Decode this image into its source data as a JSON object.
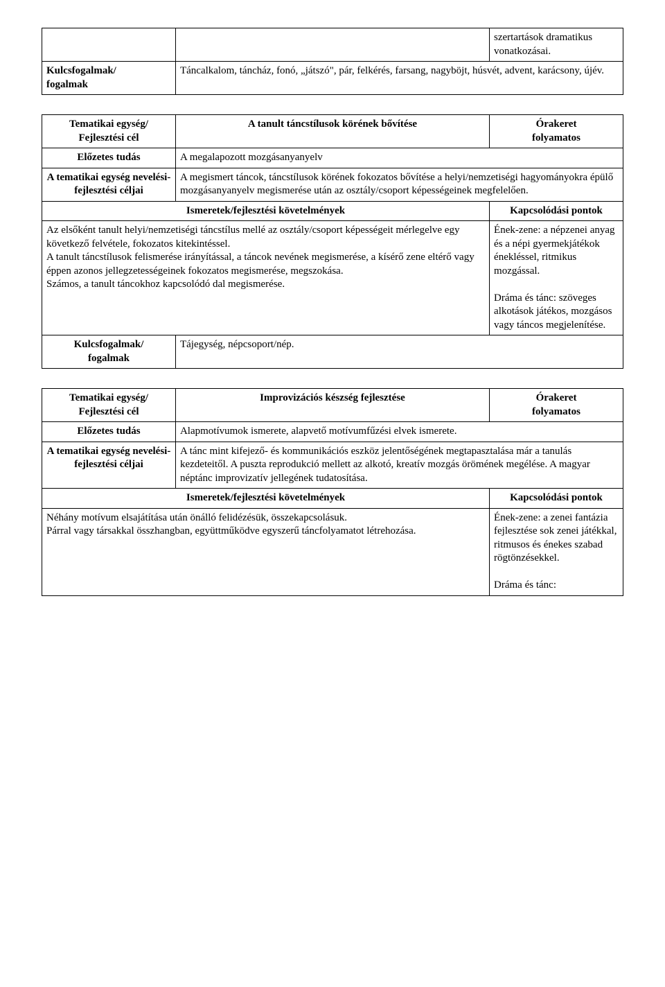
{
  "table1": {
    "row1": {
      "c1": "",
      "c2": "",
      "c3": "szertartások dramatikus vonatkozásai."
    },
    "row2": {
      "c1": "Kulcsfogalmak/\nfogalmak",
      "c2": "Táncalkalom, táncház, fonó, „játszó\", pár, felkérés, farsang, nagyböjt, húsvét, advent, karácsony, újév."
    }
  },
  "table2": {
    "r1": {
      "c1": "Tematikai egység/\nFejlesztési cél",
      "c2": "A tanult táncstílusok körének bővítése",
      "c3": "Órakeret\nfolyamatos"
    },
    "r2": {
      "c1": "Előzetes tudás",
      "c2": "A megalapozott mozgásanyanyelv"
    },
    "r3": {
      "c1": "A tematikai egység nevelési-fejlesztési céljai",
      "c2": "A megismert táncok, táncstílusok körének fokozatos bővítése a helyi/nemzetiségi hagyományokra épülő mozgásanyanyelv megismerése után az osztály/csoport képességeinek megfelelően."
    },
    "r4": {
      "c1": "Ismeretek/fejlesztési követelmények",
      "c2": "Kapcsolódási pontok"
    },
    "r5": {
      "c1": "Az elsőként tanult helyi/nemzetiségi táncstílus mellé az osztály/csoport képességeit mérlegelve egy következő felvétele, fokozatos kitekintéssel.\nA tanult táncstílusok felismerése irányítással, a táncok nevének megismerése, a kísérő zene eltérő vagy éppen azonos jellegzetességeinek fokozatos megismerése, megszokása.\nSzámos, a tanult táncokhoz kapcsolódó dal megismerése.",
      "c2": "Ének-zene: a népzenei anyag és a népi gyermekjátékok énekléssel, ritmikus mozgással.\n\nDráma és tánc: szöveges alkotások játékos, mozgásos vagy táncos megjelenítése."
    },
    "r6": {
      "c1": "Kulcsfogalmak/\nfogalmak",
      "c2": "Tájegység, népcsoport/nép."
    }
  },
  "table3": {
    "r1": {
      "c1": "Tematikai egység/\nFejlesztési cél",
      "c2": "Improvizációs készség fejlesztése",
      "c3": "Órakeret\nfolyamatos"
    },
    "r2": {
      "c1": "Előzetes tudás",
      "c2": "Alapmotívumok ismerete, alapvető motívumfűzési elvek ismerete."
    },
    "r3": {
      "c1": "A tematikai egység nevelési-fejlesztési céljai",
      "c2": "A tánc mint kifejező- és kommunikációs eszköz jelentőségének megtapasztalása már a tanulás kezdeteitől. A puszta reprodukció mellett az alkotó, kreatív mozgás örömének megélése. A magyar néptánc improvizatív jellegének tudatosítása."
    },
    "r4": {
      "c1": "Ismeretek/fejlesztési követelmények",
      "c2": "Kapcsolódási pontok"
    },
    "r5": {
      "c1": "Néhány motívum elsajátítása után önálló felidézésük, összekapcsolásuk.\nPárral vagy társakkal összhangban, együttműködve egyszerű táncfolyamatot létrehozása.",
      "c2": "Ének-zene: a zenei fantázia fejlesztése sok zenei játékkal, ritmusos és énekes szabad rögtönzésekkel.\n\nDráma és tánc:"
    }
  }
}
